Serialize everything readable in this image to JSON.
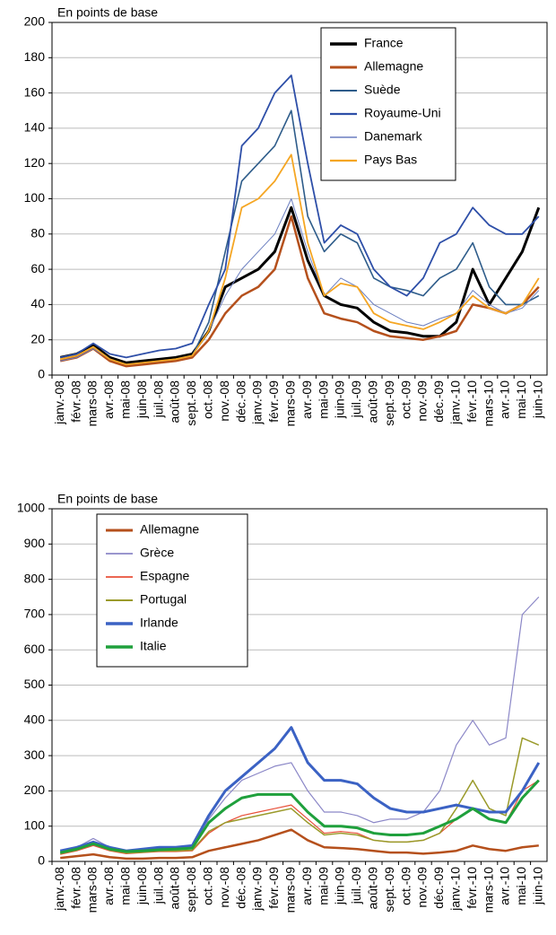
{
  "chart_data": [
    {
      "type": "line",
      "y_label": "En points de base",
      "legend": "upper right",
      "grid": true,
      "categories": [
        "janv.-08",
        "févr.-08",
        "mars-08",
        "avr.-08",
        "mai-08",
        "juin-08",
        "juil.-08",
        "août-08",
        "sept.-08",
        "oct.-08",
        "nov.-08",
        "déc.-08",
        "janv.-09",
        "févr.-09",
        "mars-09",
        "avr.-09",
        "mai-09",
        "juin-09",
        "juil.-09",
        "août-09",
        "sept.-09",
        "oct.-09",
        "nov.-09",
        "déc.-09",
        "janv.-10",
        "févr.-10",
        "mars-10",
        "avr.-10",
        "mai-10",
        "juin-10"
      ],
      "ylim": [
        0,
        200
      ],
      "yticks": [
        0,
        20,
        40,
        60,
        80,
        100,
        120,
        140,
        160,
        180,
        200
      ],
      "series": [
        {
          "name": "France",
          "color": "#000000",
          "values": [
            10,
            12,
            17,
            10,
            7,
            8,
            9,
            10,
            12,
            25,
            50,
            55,
            60,
            70,
            95,
            65,
            45,
            40,
            38,
            30,
            25,
            24,
            22,
            22,
            30,
            60,
            40,
            55,
            70,
            95
          ]
        },
        {
          "name": "Allemagne",
          "color": "#b5501c",
          "values": [
            8,
            10,
            15,
            8,
            5,
            6,
            7,
            8,
            10,
            20,
            35,
            45,
            50,
            60,
            90,
            55,
            35,
            32,
            30,
            25,
            22,
            21,
            20,
            22,
            25,
            40,
            38,
            35,
            40,
            50
          ]
        },
        {
          "name": "Suède",
          "color": "#2e5c8a",
          "values": [
            9,
            11,
            16,
            9,
            6,
            7,
            8,
            9,
            11,
            30,
            70,
            110,
            120,
            130,
            150,
            90,
            70,
            80,
            75,
            55,
            50,
            48,
            45,
            55,
            60,
            75,
            50,
            40,
            40,
            45
          ]
        },
        {
          "name": "Royaume-Uni",
          "color": "#2e4fa8",
          "values": [
            10,
            12,
            18,
            12,
            10,
            12,
            14,
            15,
            18,
            40,
            60,
            130,
            140,
            160,
            170,
            120,
            75,
            85,
            80,
            60,
            50,
            45,
            55,
            75,
            80,
            95,
            85,
            80,
            80,
            90
          ]
        },
        {
          "name": "Danemark",
          "color": "#6b7fc0",
          "values": [
            8,
            10,
            15,
            9,
            6,
            7,
            8,
            9,
            11,
            25,
            45,
            60,
            70,
            80,
            100,
            70,
            45,
            55,
            50,
            40,
            35,
            30,
            28,
            32,
            35,
            48,
            40,
            35,
            38,
            48
          ]
        },
        {
          "name": "Pays Bas",
          "color": "#f5a623",
          "values": [
            9,
            11,
            16,
            9,
            6,
            7,
            8,
            9,
            11,
            25,
            55,
            95,
            100,
            110,
            125,
            75,
            45,
            52,
            50,
            35,
            30,
            28,
            26,
            30,
            35,
            45,
            38,
            35,
            40,
            55
          ]
        }
      ]
    },
    {
      "type": "line",
      "y_label": "En points de base",
      "legend": "upper left",
      "grid": true,
      "categories": [
        "janv.-08",
        "févr.-08",
        "mars-08",
        "avr.-08",
        "mai-08",
        "juin-08",
        "juil.-08",
        "août-08",
        "sept.-08",
        "oct.-08",
        "nov.-08",
        "déc.-08",
        "janv.-09",
        "févr.-09",
        "mars-09",
        "avr.-09",
        "mai-09",
        "juin-09",
        "juil.-09",
        "août-09",
        "sept.-09",
        "oct.-09",
        "nov.-09",
        "déc.-09",
        "janv.-10",
        "févr.-10",
        "mars-10",
        "avr.-10",
        "mai-10",
        "juin-10"
      ],
      "ylim": [
        0,
        1000
      ],
      "yticks": [
        0,
        100,
        200,
        300,
        400,
        500,
        600,
        700,
        800,
        900,
        1000
      ],
      "series": [
        {
          "name": "Allemagne",
          "color": "#b5501c",
          "values": [
            10,
            15,
            20,
            12,
            8,
            8,
            10,
            10,
            12,
            30,
            40,
            50,
            60,
            75,
            90,
            60,
            40,
            38,
            35,
            30,
            25,
            25,
            22,
            25,
            30,
            45,
            35,
            30,
            40,
            45
          ]
        },
        {
          "name": "Grèce",
          "color": "#8b87c7",
          "values": [
            25,
            40,
            65,
            40,
            30,
            35,
            40,
            40,
            45,
            120,
            180,
            230,
            250,
            270,
            280,
            200,
            140,
            140,
            130,
            110,
            120,
            120,
            140,
            200,
            330,
            400,
            330,
            350,
            700,
            750
          ]
        },
        {
          "name": "Espagne",
          "color": "#e8503a",
          "values": [
            20,
            30,
            45,
            30,
            22,
            25,
            28,
            28,
            30,
            80,
            110,
            130,
            140,
            150,
            160,
            120,
            80,
            85,
            80,
            60,
            55,
            55,
            60,
            80,
            120,
            150,
            120,
            110,
            200,
            230
          ]
        },
        {
          "name": "Portugal",
          "color": "#9a9a2a",
          "values": [
            22,
            32,
            50,
            32,
            24,
            26,
            30,
            30,
            32,
            85,
            110,
            120,
            130,
            140,
            150,
            110,
            75,
            80,
            75,
            60,
            55,
            55,
            60,
            80,
            150,
            230,
            150,
            130,
            350,
            330
          ]
        },
        {
          "name": "Irlande",
          "color": "#3b62c4",
          "values": [
            30,
            40,
            55,
            40,
            30,
            35,
            40,
            40,
            45,
            130,
            200,
            240,
            280,
            320,
            380,
            280,
            230,
            230,
            220,
            180,
            150,
            140,
            140,
            150,
            160,
            150,
            140,
            140,
            200,
            280
          ]
        },
        {
          "name": "Italie",
          "color": "#1fa03c",
          "values": [
            25,
            35,
            50,
            35,
            28,
            30,
            33,
            35,
            38,
            110,
            150,
            180,
            190,
            190,
            190,
            140,
            100,
            100,
            95,
            80,
            75,
            75,
            80,
            100,
            120,
            150,
            120,
            110,
            180,
            230
          ]
        }
      ]
    }
  ]
}
